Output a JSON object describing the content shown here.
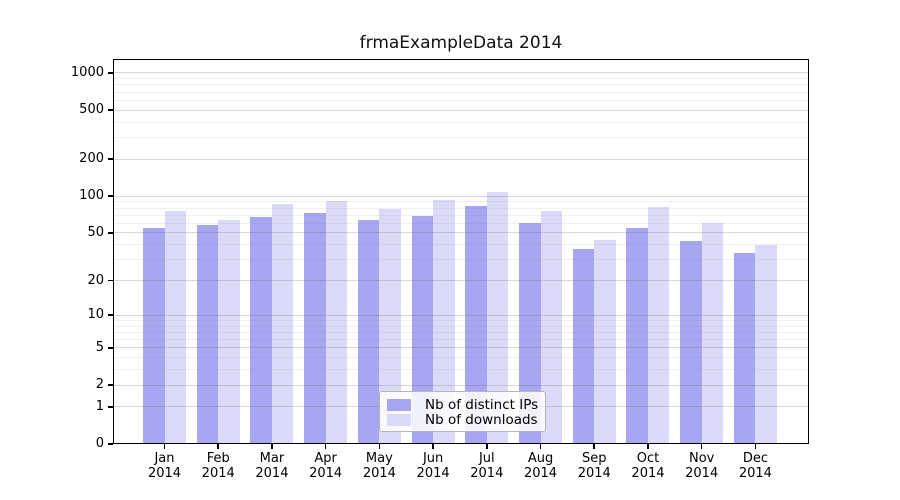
{
  "window": {
    "background": "#ffffff"
  },
  "chart_data": {
    "type": "bar",
    "title": "frmaExampleData 2014",
    "y_scale": "log10(1+x)",
    "grid": "on",
    "categories": [
      "Jan",
      "Feb",
      "Mar",
      "Apr",
      "May",
      "Jun",
      "Jul",
      "Aug",
      "Sep",
      "Oct",
      "Nov",
      "Dec"
    ],
    "category_year": "2014",
    "series": [
      {
        "name": "Nb of distinct IPs",
        "color": "#a6a6f2",
        "values": [
          55,
          58,
          67,
          73,
          64,
          69,
          83,
          60,
          37,
          55,
          43,
          34
        ]
      },
      {
        "name": "Nb of downloads",
        "color": "#dbdbf9",
        "values": [
          75,
          64,
          87,
          92,
          79,
          93,
          108,
          75,
          44,
          82,
          60,
          40
        ]
      }
    ],
    "y_ticks": [
      0,
      1,
      2,
      5,
      10,
      20,
      50,
      100,
      200,
      500,
      1000
    ],
    "y_minor_gridlines": [
      3,
      4,
      6,
      7,
      8,
      9,
      30,
      40,
      60,
      70,
      80,
      90,
      300,
      400,
      600,
      700,
      800,
      900
    ],
    "ylim": [
      0,
      1300
    ],
    "legend_position": "inside-bottom-center"
  },
  "colors": {
    "bar_ips": "#a6a6f2",
    "bar_downloads": "#dbdbf9",
    "grid_major": "rgba(100,100,100,0.25)",
    "grid_minor": "rgba(150,150,150,0.14)",
    "axis": "#000000"
  }
}
